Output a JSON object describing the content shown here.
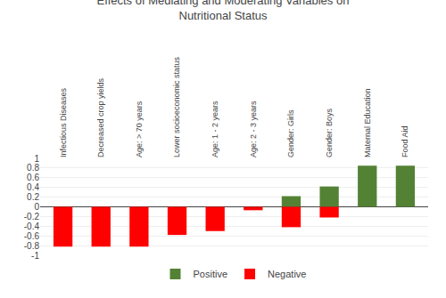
{
  "chart_data": {
    "type": "bar",
    "title": "Effects of Mediating and Moderating Variables on\nNutritional Status",
    "categories": [
      "Infectious Diseases",
      "Decreased crop yields",
      "Age: > 70 years",
      "Lower socioeconomic status",
      "Age: 1 - 2 years",
      "Age: 2 - 3 years",
      "Gender: Girls",
      "Gender: Boys",
      "Maternal Education",
      "Food Aid"
    ],
    "series": [
      {
        "name": "Positive",
        "color": "#548235",
        "values": [
          0,
          0,
          0,
          0,
          0,
          0,
          0.22,
          0.42,
          0.85,
          0.85
        ]
      },
      {
        "name": "Negative",
        "color": "#FF0000",
        "values": [
          -0.82,
          -0.82,
          -0.82,
          -0.58,
          -0.5,
          -0.07,
          -0.42,
          -0.22,
          0,
          0
        ]
      }
    ],
    "ylim": [
      -1,
      1
    ],
    "yticks": [
      -1,
      -0.8,
      -0.6,
      -0.4,
      -0.2,
      0,
      0.2,
      0.4,
      0.6,
      0.8,
      1
    ],
    "grid": true,
    "legend": "bottom"
  }
}
